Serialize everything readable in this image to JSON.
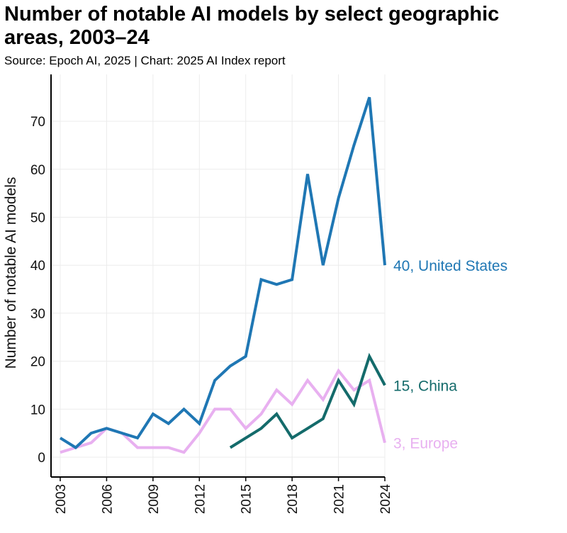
{
  "header": {
    "title": "Number of notable AI models by select geographic areas, 2003–24",
    "subtitle": "Source: Epoch AI, 2025 | Chart: 2025 AI Index report"
  },
  "chart_data": {
    "type": "line",
    "title": "Number of notable AI models by select geographic areas, 2003–24",
    "subtitle": "Source: Epoch AI, 2025 | Chart: 2025 AI Index report",
    "xlabel": "",
    "ylabel": "Number of notable AI models",
    "xlim": [
      2003,
      2024
    ],
    "ylim": [
      -4,
      80
    ],
    "x_ticks": [
      "2003",
      "2006",
      "2009",
      "2012",
      "2015",
      "2018",
      "2021",
      "2024"
    ],
    "y_ticks": [
      "0",
      "10",
      "20",
      "30",
      "40",
      "50",
      "60",
      "70"
    ],
    "grid": true,
    "series": [
      {
        "name": "United States",
        "color": "#1f77b4",
        "end_label": "40, United States",
        "x": [
          2003,
          2004,
          2005,
          2006,
          2007,
          2008,
          2009,
          2010,
          2011,
          2012,
          2013,
          2014,
          2015,
          2016,
          2017,
          2018,
          2019,
          2020,
          2021,
          2022,
          2023,
          2024
        ],
        "values": [
          4,
          2,
          5,
          6,
          5,
          4,
          9,
          7,
          10,
          7,
          16,
          19,
          21,
          37,
          36,
          37,
          59,
          40,
          54,
          65,
          75,
          40
        ]
      },
      {
        "name": "China",
        "color": "#146b6b",
        "end_label": "15, China",
        "x": [
          2014,
          2015,
          2016,
          2017,
          2018,
          2019,
          2020,
          2021,
          2022,
          2023,
          2024
        ],
        "values": [
          2,
          4,
          6,
          9,
          4,
          6,
          8,
          16,
          11,
          21,
          15
        ]
      },
      {
        "name": "Europe",
        "color": "#e8b0f0",
        "end_label": "3, Europe",
        "x": [
          2003,
          2004,
          2005,
          2006,
          2007,
          2008,
          2009,
          2010,
          2011,
          2012,
          2013,
          2014,
          2015,
          2016,
          2017,
          2018,
          2019,
          2020,
          2021,
          2022,
          2023,
          2024
        ],
        "values": [
          1,
          2,
          3,
          6,
          5,
          2,
          2,
          2,
          1,
          5,
          10,
          10,
          6,
          9,
          14,
          11,
          16,
          12,
          18,
          14,
          16,
          3
        ]
      }
    ]
  }
}
